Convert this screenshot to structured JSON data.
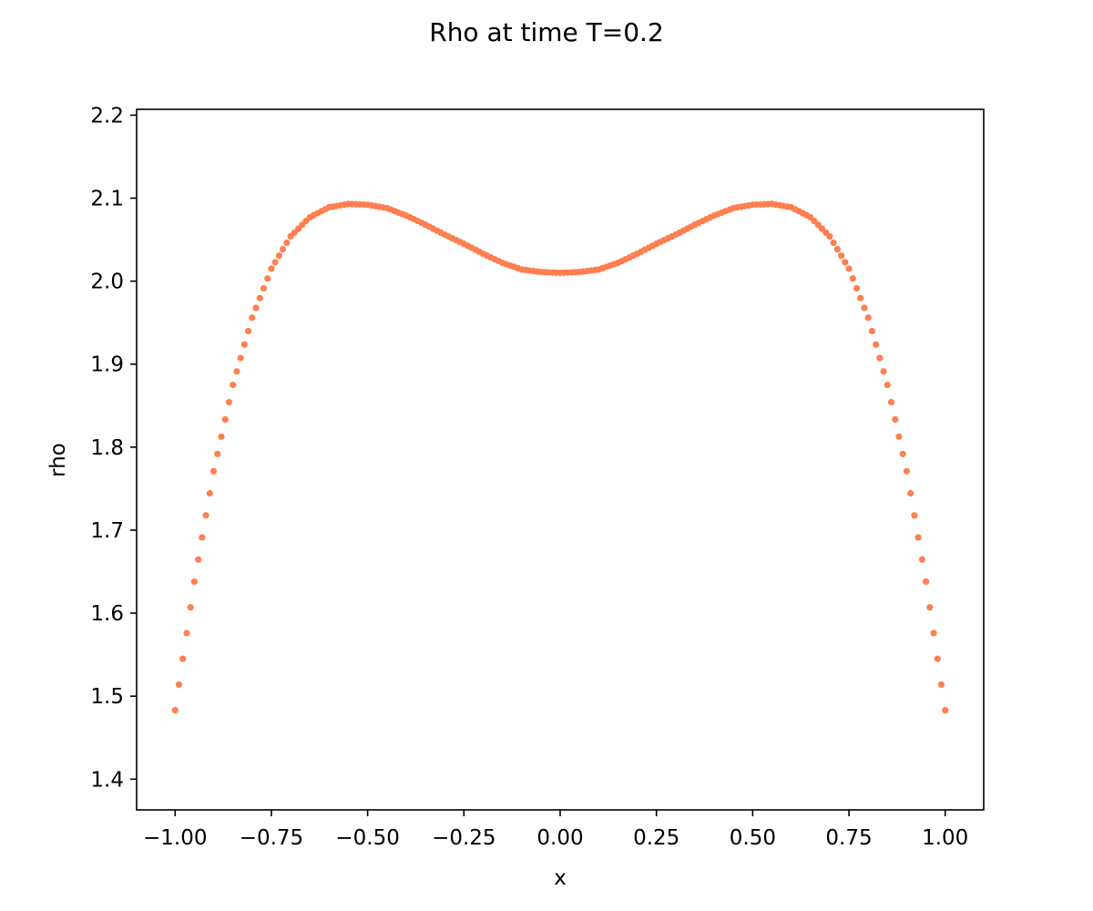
{
  "chart_data": {
    "type": "scatter",
    "title": "Rho at time T=0.2",
    "xlabel": "x",
    "ylabel": "rho",
    "xlim": [
      -1.1,
      1.1
    ],
    "ylim": [
      1.363,
      2.207
    ],
    "grid": false,
    "x_ticks": [
      -1.0,
      -0.75,
      -0.5,
      -0.25,
      0.0,
      0.25,
      0.5,
      0.75,
      1.0
    ],
    "x_tick_labels": [
      "−1.00",
      "−0.75",
      "−0.50",
      "−0.25",
      "0.00",
      "0.25",
      "0.50",
      "0.75",
      "1.00"
    ],
    "y_ticks": [
      1.4,
      1.5,
      1.6,
      1.7,
      1.8,
      1.9,
      2.0,
      2.1,
      2.2
    ],
    "y_tick_labels": [
      "1.4",
      "1.5",
      "1.6",
      "1.7",
      "1.8",
      "1.9",
      "2.0",
      "2.1",
      "2.2"
    ],
    "marker_color": "#FF7F50",
    "series": [
      {
        "x": [
          -1.0,
          -0.95,
          -0.9,
          -0.85,
          -0.8,
          -0.75,
          -0.7,
          -0.65,
          -0.6,
          -0.55,
          -0.5,
          -0.45,
          -0.4,
          -0.35,
          -0.3,
          -0.25,
          -0.2,
          -0.15,
          -0.1,
          -0.05,
          0.0,
          0.05,
          0.1,
          0.15,
          0.2,
          0.25,
          0.3,
          0.35,
          0.4,
          0.45,
          0.5,
          0.55,
          0.6,
          0.65,
          0.7,
          0.75,
          0.8,
          0.85,
          0.9,
          0.95,
          1.0
        ],
        "y": [
          1.483,
          1.638,
          1.771,
          1.875,
          1.956,
          2.015,
          2.054,
          2.077,
          2.089,
          2.093,
          2.092,
          2.088,
          2.079,
          2.068,
          2.056,
          2.045,
          2.033,
          2.022,
          2.014,
          2.011,
          2.01,
          2.011,
          2.014,
          2.022,
          2.033,
          2.045,
          2.056,
          2.068,
          2.079,
          2.088,
          2.092,
          2.093,
          2.089,
          2.077,
          2.054,
          2.015,
          1.956,
          1.875,
          1.771,
          1.638,
          1.483
        ]
      }
    ]
  }
}
